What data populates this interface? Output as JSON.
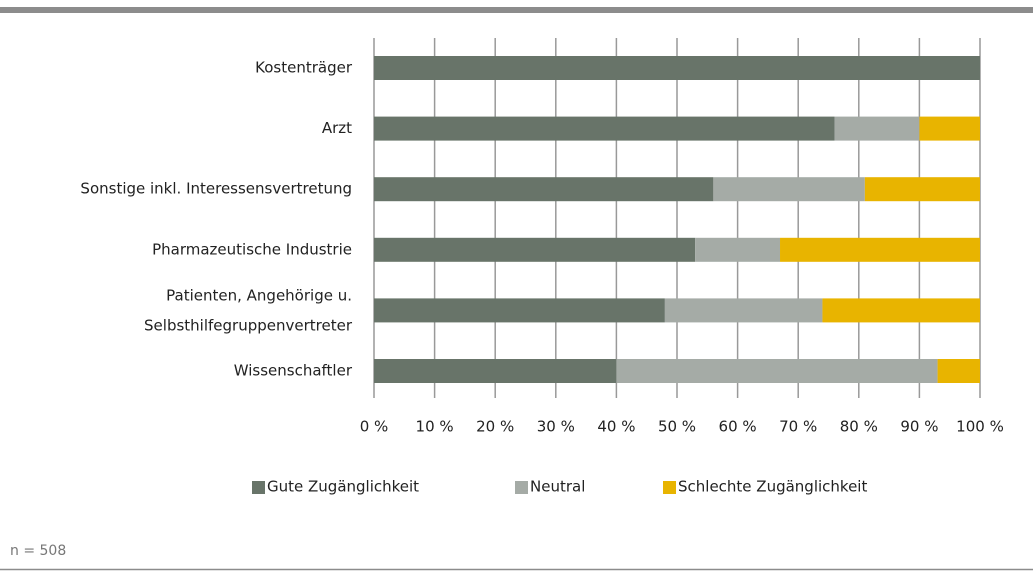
{
  "chart_data": {
    "type": "stacked_bar_horizontal",
    "categories": [
      "Kostenträger",
      "Arzt",
      "Sonstige inkl. Interessensvertretung",
      "Pharmazeutische Industrie",
      "Patienten, Angehörige u.\nSelbsthilfegruppenvertreter",
      "Wissenschaftler"
    ],
    "series": [
      {
        "name": "Gute Zugänglichkeit",
        "color": "#687469",
        "values": [
          100,
          76,
          56,
          53,
          48,
          40
        ]
      },
      {
        "name": "Neutral",
        "color": "#a5aba6",
        "values": [
          0,
          14,
          25,
          14,
          26,
          53
        ]
      },
      {
        "name": "Schlechte Zugänglichkeit",
        "color": "#e8b400",
        "values": [
          0,
          10,
          19,
          33,
          26,
          7
        ]
      }
    ],
    "xlim": [
      0,
      100
    ],
    "xticks": [
      {
        "value": 0,
        "label": "0 %"
      },
      {
        "value": 10,
        "label": "10 %"
      },
      {
        "value": 20,
        "label": "20 %"
      },
      {
        "value": 30,
        "label": "30 %"
      },
      {
        "value": 40,
        "label": "40 %"
      },
      {
        "value": 50,
        "label": "50 %"
      },
      {
        "value": 60,
        "label": "60 %"
      },
      {
        "value": 70,
        "label": "70 %"
      },
      {
        "value": 80,
        "label": "80 %"
      },
      {
        "value": 90,
        "label": "90 %"
      },
      {
        "value": 100,
        "label": "100 %"
      }
    ],
    "grid": true,
    "legend": "bottom",
    "note": "n = 508"
  }
}
